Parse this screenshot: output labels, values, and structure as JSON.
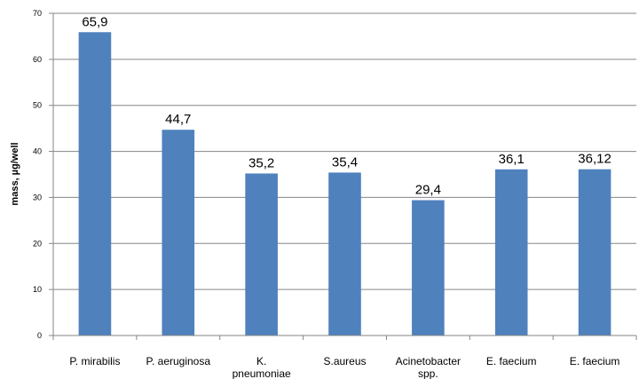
{
  "chart_data": {
    "type": "bar",
    "categories": [
      "P. mirabilis",
      "P. aeruginosa",
      "K. pneumoniae",
      "S.aureus",
      "Acinetobacter spp.",
      "E. faecium",
      "E. faecium"
    ],
    "category_lines": [
      [
        "P. mirabilis"
      ],
      [
        "P. aeruginosa"
      ],
      [
        "K.",
        "pneumoniae"
      ],
      [
        "S.aureus"
      ],
      [
        "Acinetobacter",
        "spp."
      ],
      [
        "E. faecium"
      ],
      [
        "E. faecium"
      ]
    ],
    "values": [
      65.9,
      44.7,
      35.2,
      35.4,
      29.4,
      36.1,
      36.12
    ],
    "data_labels": [
      "65,9",
      "44,7",
      "35,2",
      "35,4",
      "29,4",
      "36,1",
      "36,12"
    ],
    "title": "",
    "xlabel": "",
    "ylabel": "mass, µg/well",
    "ylim": [
      0,
      70
    ],
    "yticks": [
      0,
      10,
      20,
      30,
      40,
      50,
      60,
      70
    ],
    "grid": true,
    "legend": "none",
    "bar_color": "#4F81BD",
    "grid_color": "#868686"
  }
}
